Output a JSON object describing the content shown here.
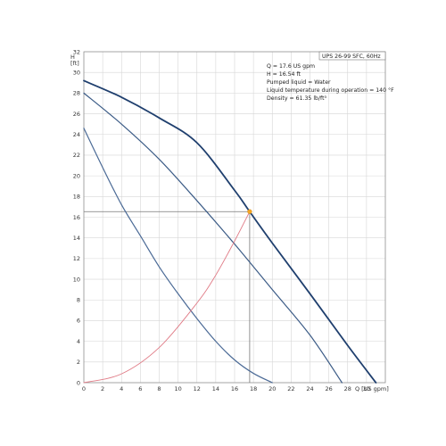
{
  "chart_data": {
    "type": "line",
    "title": "UPS 26-99 SFC, 60Hz",
    "xlabel": "Q [US gpm]",
    "ylabel_top": "H",
    "ylabel_unit": "[ft]",
    "xlim": [
      0,
      32
    ],
    "ylim": [
      0,
      32
    ],
    "xticks": [
      0,
      2,
      4,
      6,
      8,
      10,
      12,
      14,
      16,
      18,
      20,
      22,
      24,
      26,
      28,
      30
    ],
    "yticks": [
      0,
      2,
      4,
      6,
      8,
      10,
      12,
      14,
      16,
      18,
      20,
      22,
      24,
      26,
      28,
      30,
      32
    ],
    "grid": true,
    "info_lines": [
      "Q = 17.6 US gpm",
      "H = 16.54 ft",
      "Pumped liquid = Water",
      "Liquid temperature during operation = 140 °F",
      "Density = 61.35 lb/ft³"
    ],
    "series": [
      {
        "kind": "pump-curve-max",
        "color": "#1f3f6e",
        "points": [
          [
            0,
            29.2
          ],
          [
            4,
            27.6
          ],
          [
            8,
            25.6
          ],
          [
            12,
            23.2
          ],
          [
            16,
            18.6
          ],
          [
            17.6,
            16.54
          ],
          [
            20,
            13.5
          ],
          [
            24,
            8.6
          ],
          [
            28,
            3.6
          ],
          [
            31,
            0
          ]
        ]
      },
      {
        "kind": "pump-curve-mid",
        "color": "#3b5b86",
        "points": [
          [
            0,
            28.0
          ],
          [
            4,
            25.0
          ],
          [
            8,
            21.6
          ],
          [
            12,
            17.6
          ],
          [
            16,
            13.4
          ],
          [
            20,
            9.0
          ],
          [
            24,
            4.6
          ],
          [
            27.4,
            0
          ]
        ]
      },
      {
        "kind": "pump-curve-min",
        "color": "#4b6a96",
        "points": [
          [
            0,
            24.6
          ],
          [
            2,
            20.8
          ],
          [
            4,
            17.2
          ],
          [
            6,
            14.2
          ],
          [
            8,
            11.2
          ],
          [
            10,
            8.6
          ],
          [
            12,
            6.2
          ],
          [
            14,
            4.0
          ],
          [
            16,
            2.2
          ],
          [
            18,
            0.9
          ],
          [
            20,
            0
          ]
        ]
      },
      {
        "kind": "system-curve",
        "color": "#e07b86",
        "points": [
          [
            0,
            0
          ],
          [
            4,
            0.85
          ],
          [
            8,
            3.4
          ],
          [
            12,
            7.7
          ],
          [
            14,
            10.4
          ],
          [
            16,
            13.7
          ],
          [
            17.6,
            16.54
          ]
        ]
      }
    ],
    "duty_point": {
      "x": 17.6,
      "y": 16.54,
      "color": "#f5a623"
    }
  }
}
